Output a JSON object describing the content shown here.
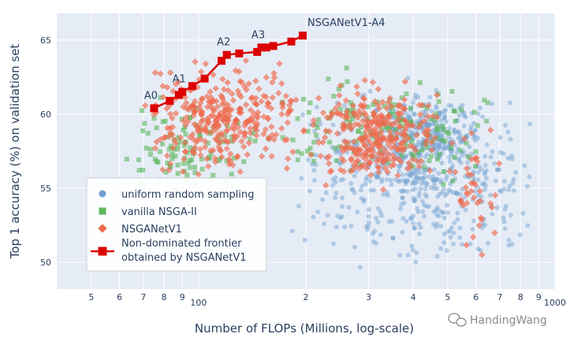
{
  "chart_data": {
    "type": "scatter",
    "xlabel": "Number of FLOPs (Millions, log-scale)",
    "ylabel": "Top 1 accuracy (%) on validation set",
    "xscale": "log",
    "xlim": [
      40,
      1000
    ],
    "ylim": [
      48.2,
      66.8
    ],
    "grid": true,
    "x_tick_labels": [
      {
        "value": 50,
        "label": "5"
      },
      {
        "value": 60,
        "label": "6"
      },
      {
        "value": 70,
        "label": "7"
      },
      {
        "value": 80,
        "label": "8"
      },
      {
        "value": 90,
        "label": "9"
      },
      {
        "value": 100,
        "label": "100"
      },
      {
        "value": 200,
        "label": "2"
      },
      {
        "value": 300,
        "label": "3"
      },
      {
        "value": 400,
        "label": "4"
      },
      {
        "value": 500,
        "label": "5"
      },
      {
        "value": 600,
        "label": "6"
      },
      {
        "value": 700,
        "label": "7"
      },
      {
        "value": 800,
        "label": "8"
      },
      {
        "value": 900,
        "label": "9"
      },
      {
        "value": 1000,
        "label": "1000"
      }
    ],
    "y_ticks": [
      50,
      55,
      60,
      65
    ],
    "legend_position": "bottom-left",
    "series": [
      {
        "name": "uniform random sampling",
        "marker": "circle",
        "color": "#6f9fce",
        "density_regions": [
          {
            "x_range": [
              180,
              900
            ],
            "y_range": [
              48.5,
              63
            ],
            "points": 520
          },
          {
            "x_range": [
              300,
              650
            ],
            "y_range": [
              56,
              61.5
            ],
            "points": 220
          }
        ]
      },
      {
        "name": "vanilla NSGA-II",
        "marker": "square",
        "color": "#5cb85c",
        "density_regions": [
          {
            "x_range": [
              60,
              150
            ],
            "y_range": [
              54,
              61.5
            ],
            "points": 110
          },
          {
            "x_range": [
              150,
              700
            ],
            "y_range": [
              54,
              64.5
            ],
            "points": 160
          }
        ]
      },
      {
        "name": "NSGANetV1",
        "marker": "diamond",
        "color": "#ef6a4d",
        "density_regions": [
          {
            "x_range": [
              70,
              200
            ],
            "y_range": [
              55,
              64.5
            ],
            "points": 330
          },
          {
            "x_range": [
              200,
              500
            ],
            "y_range": [
              54,
              63
            ],
            "points": 300
          },
          {
            "x_range": [
              500,
              700
            ],
            "y_range": [
              50,
              60
            ],
            "points": 40
          }
        ]
      },
      {
        "name": "Non-dominated frontier obtained by NSGANetV1",
        "marker": "square-line",
        "color": "#dd0000",
        "x": [
          75,
          83,
          88,
          90,
          96,
          104,
          116,
          120,
          130,
          146,
          150,
          155,
          162,
          182,
          196
        ],
        "y": [
          60.4,
          60.9,
          61.3,
          61.5,
          61.9,
          62.4,
          63.6,
          64.0,
          64.1,
          64.2,
          64.5,
          64.5,
          64.6,
          64.9,
          65.3
        ]
      }
    ],
    "annotations": [
      {
        "text": "A0",
        "x": 75,
        "y": 60.4
      },
      {
        "text": "A1",
        "x": 90,
        "y": 61.5
      },
      {
        "text": "A2",
        "x": 120,
        "y": 64.0
      },
      {
        "text": "A3",
        "x": 150,
        "y": 64.5
      },
      {
        "text": "NSGANetV1-A4",
        "x": 196,
        "y": 65.3
      }
    ]
  },
  "watermark": {
    "text": "HandingWang",
    "icon": "wechat-icon"
  }
}
